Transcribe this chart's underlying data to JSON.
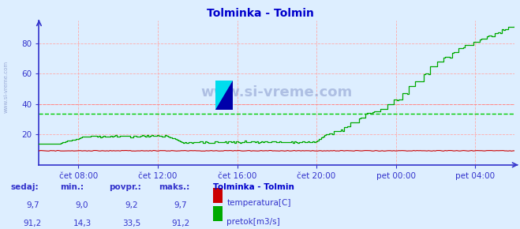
{
  "title": "Tolminka - Tolmin",
  "title_color": "#0000cc",
  "bg_color": "#ddeeff",
  "plot_bg_color": "#ddeeff",
  "grid_color_h": "#ffaaaa",
  "grid_color_v": "#ffaaaa",
  "avg_line_color_green": "#00cc00",
  "avg_line_color_red": "#ff8888",
  "avg_value_green": 33.5,
  "avg_value_red": 40.0,
  "ylim": [
    0,
    95
  ],
  "yticks": [
    20,
    40,
    60,
    80
  ],
  "axis_color": "#3333cc",
  "tick_color": "#3333cc",
  "watermark": "www.si-vreme.com",
  "watermark_color": "#8899cc",
  "legend_title": "Tolminka - Tolmin",
  "legend_title_color": "#0000cc",
  "legend_color": "#3333cc",
  "temp_color": "#cc0000",
  "flow_color": "#00aa00",
  "temp_label": "temperatura[C]",
  "flow_label": "pretok[m3/s]",
  "table_headers": [
    "sedaj:",
    "min.:",
    "povpr.:",
    "maks.:"
  ],
  "table_temp": [
    "9,7",
    "9,0",
    "9,2",
    "9,7"
  ],
  "table_flow": [
    "91,2",
    "14,3",
    "33,5",
    "91,2"
  ],
  "xtick_labels": [
    "čet 08:00",
    "čet 12:00",
    "čet 16:00",
    "čet 20:00",
    "pet 00:00",
    "pet 04:00"
  ],
  "xtick_positions": [
    0.083,
    0.25,
    0.417,
    0.583,
    0.75,
    0.917
  ],
  "n_points": 288
}
